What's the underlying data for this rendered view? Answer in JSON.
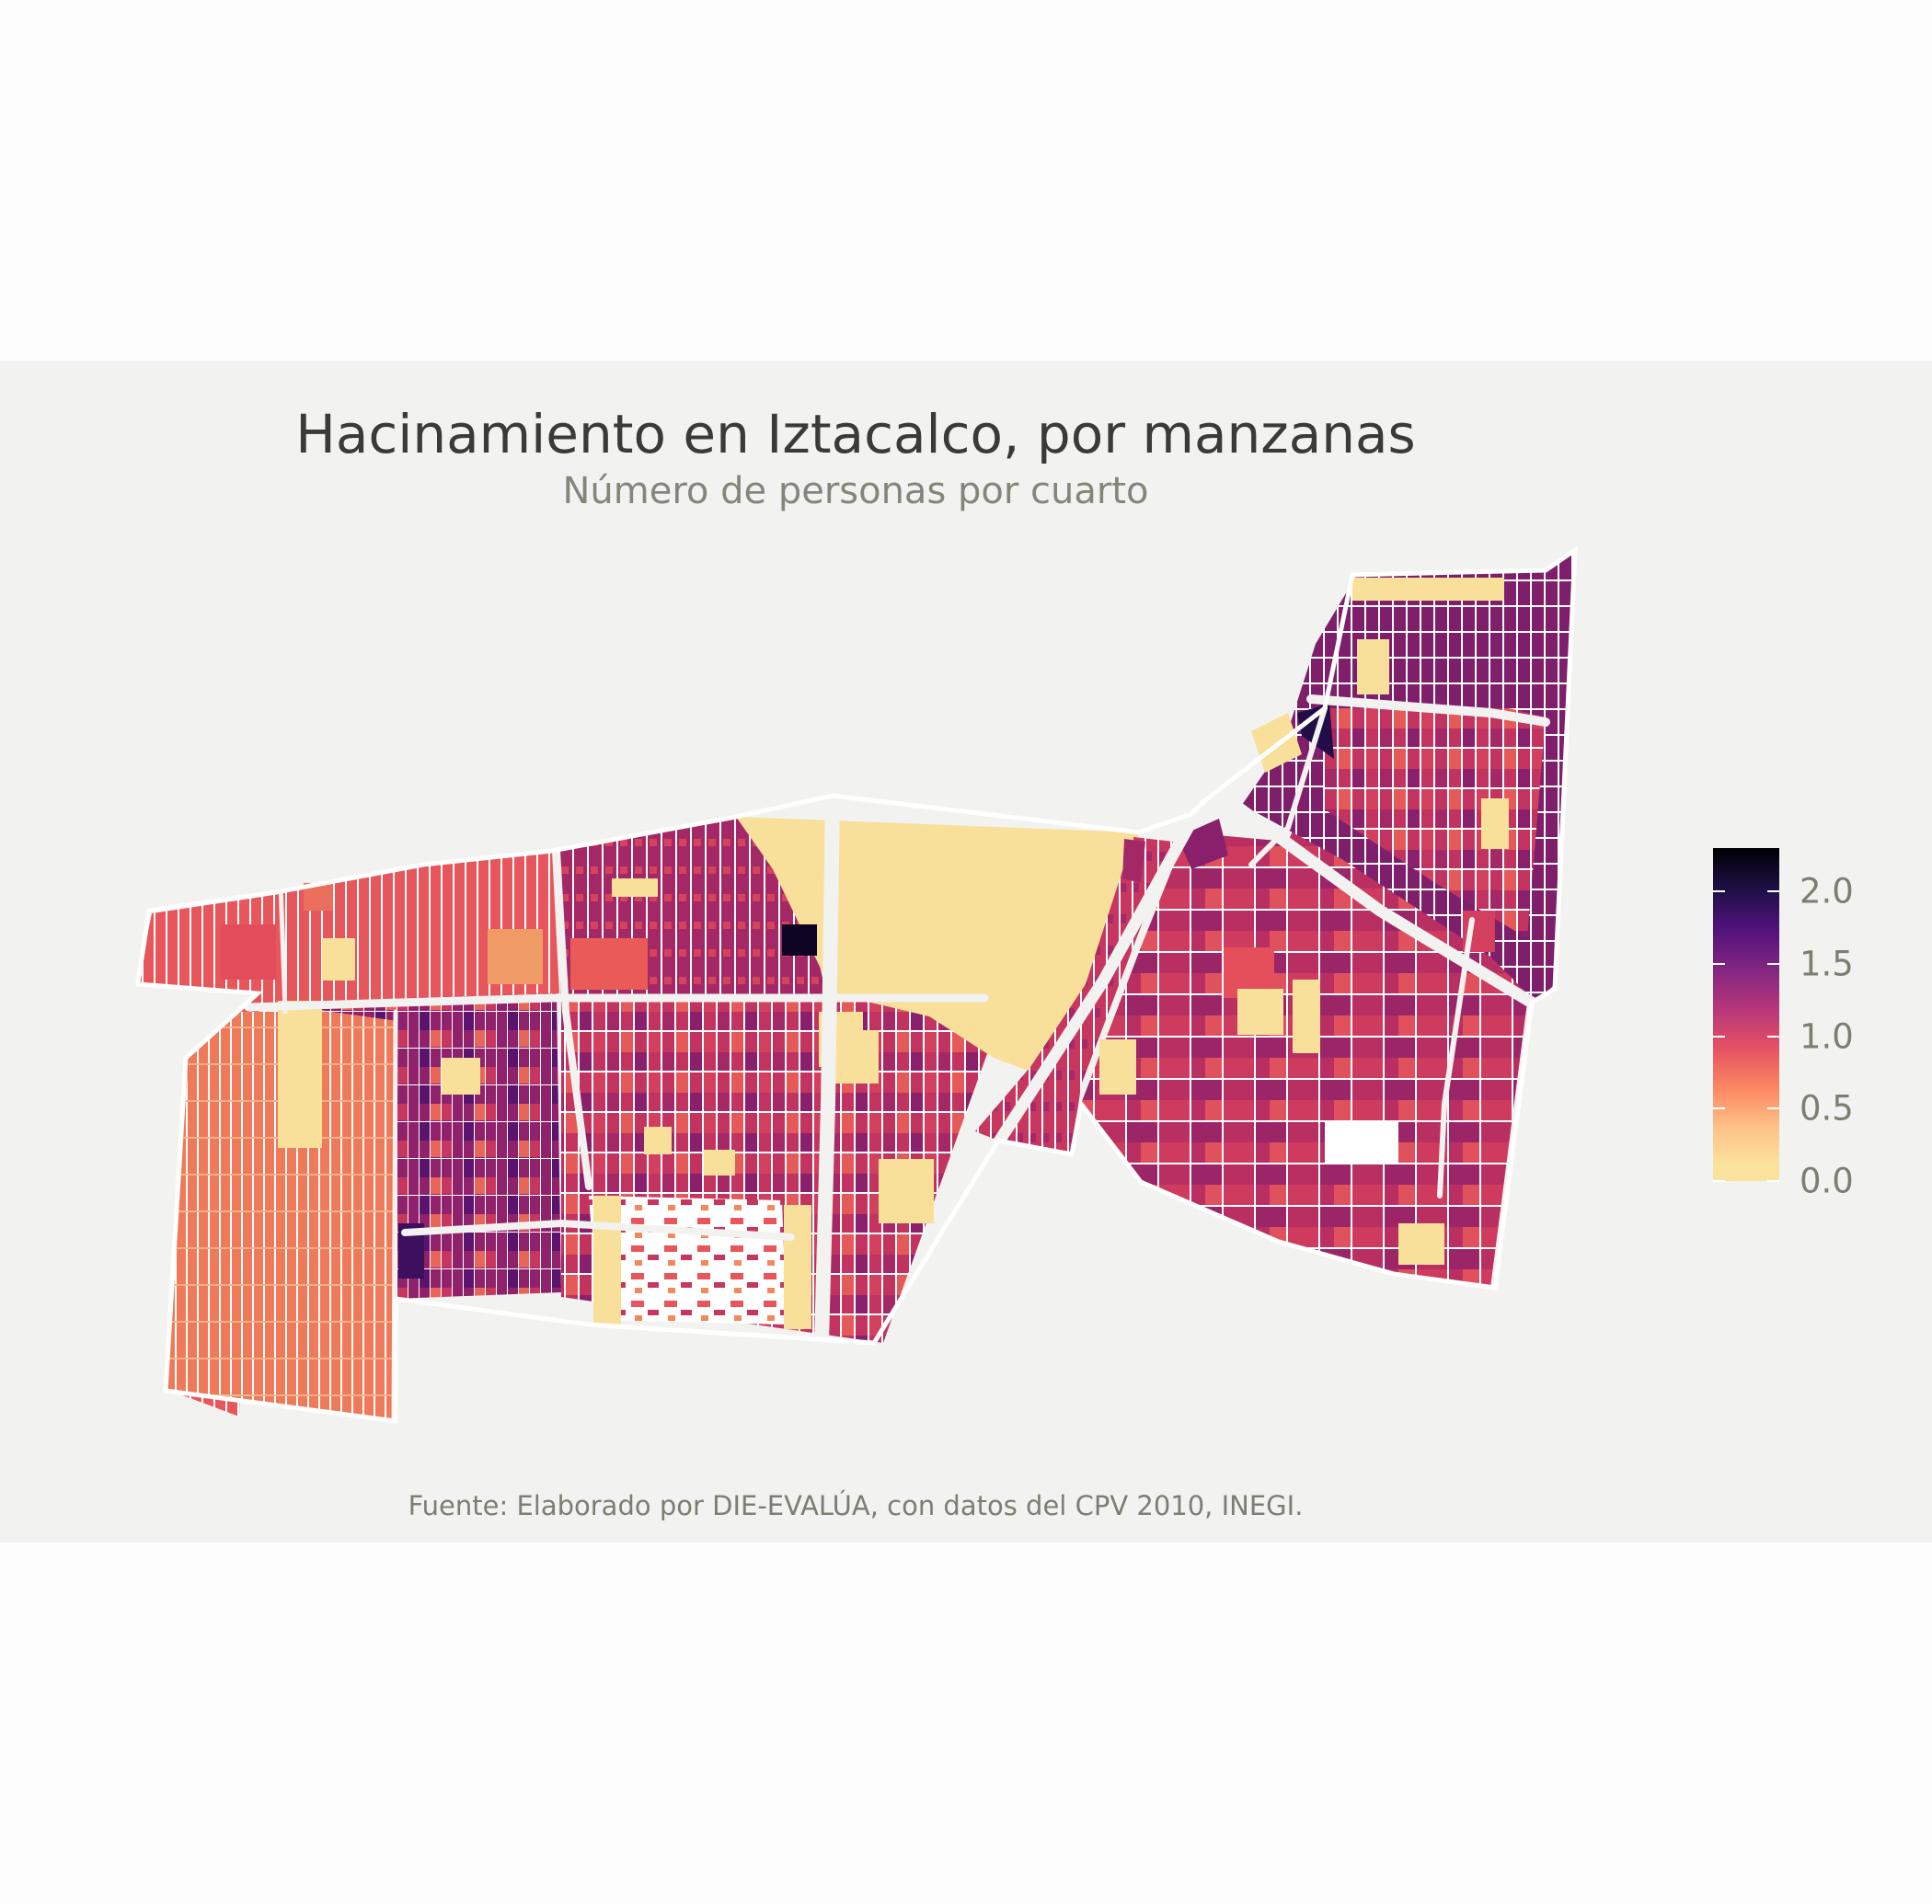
{
  "title": "Hacinamiento en Iztacalco, por manzanas",
  "subtitle": "Número de personas por cuarto",
  "caption": "Fuente: Elaborado por DIE-EVALÚA, con datos del CPV 2010, INEGI.",
  "legend": {
    "labels": [
      "2.0",
      "1.5",
      "1.0",
      "0.5",
      "0.0"
    ],
    "values": [
      2.0,
      1.5,
      1.0,
      0.5,
      0.0
    ],
    "range": [
      0,
      2.3
    ],
    "palette": [
      "#000004",
      "#4f127b",
      "#b5367a",
      "#fb8761",
      "#fbe29b"
    ]
  },
  "colors": {
    "background": "#f2f2f0",
    "outer_background": "#fdfdfd",
    "block_borders": "#ffffff",
    "low": "#f9e09a",
    "peach": "#f08a5e",
    "salmon": "#e9575a",
    "crimson": "#c9375e",
    "magenta": "#a82865",
    "plum": "#7e1d6b",
    "violet": "#4a1269",
    "dark": "#1d0b3c"
  }
}
